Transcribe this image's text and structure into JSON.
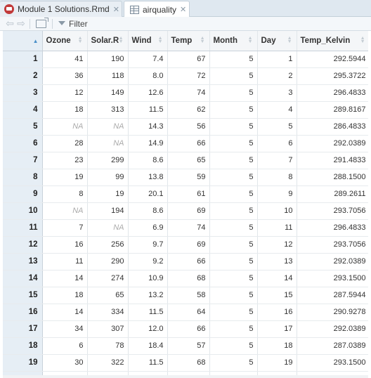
{
  "tabs": [
    {
      "label": "Module 1 Solutions.Rmd",
      "icon": "rmarkdown-file-icon",
      "active": false
    },
    {
      "label": "airquality",
      "icon": "data-grid-icon",
      "active": true
    }
  ],
  "toolbar": {
    "filter_label": "Filter"
  },
  "table": {
    "columns": [
      "Ozone",
      "Solar.R",
      "Wind",
      "Temp",
      "Month",
      "Day",
      "Temp_Kelvin"
    ],
    "rows": [
      [
        "1",
        "41",
        "190",
        "7.4",
        "67",
        "5",
        "1",
        "292.5944"
      ],
      [
        "2",
        "36",
        "118",
        "8.0",
        "72",
        "5",
        "2",
        "295.3722"
      ],
      [
        "3",
        "12",
        "149",
        "12.6",
        "74",
        "5",
        "3",
        "296.4833"
      ],
      [
        "4",
        "18",
        "313",
        "11.5",
        "62",
        "5",
        "4",
        "289.8167"
      ],
      [
        "5",
        "NA",
        "NA",
        "14.3",
        "56",
        "5",
        "5",
        "286.4833"
      ],
      [
        "6",
        "28",
        "NA",
        "14.9",
        "66",
        "5",
        "6",
        "292.0389"
      ],
      [
        "7",
        "23",
        "299",
        "8.6",
        "65",
        "5",
        "7",
        "291.4833"
      ],
      [
        "8",
        "19",
        "99",
        "13.8",
        "59",
        "5",
        "8",
        "288.1500"
      ],
      [
        "9",
        "8",
        "19",
        "20.1",
        "61",
        "5",
        "9",
        "289.2611"
      ],
      [
        "10",
        "NA",
        "194",
        "8.6",
        "69",
        "5",
        "10",
        "293.7056"
      ],
      [
        "11",
        "7",
        "NA",
        "6.9",
        "74",
        "5",
        "11",
        "296.4833"
      ],
      [
        "12",
        "16",
        "256",
        "9.7",
        "69",
        "5",
        "12",
        "293.7056"
      ],
      [
        "13",
        "11",
        "290",
        "9.2",
        "66",
        "5",
        "13",
        "292.0389"
      ],
      [
        "14",
        "14",
        "274",
        "10.9",
        "68",
        "5",
        "14",
        "293.1500"
      ],
      [
        "15",
        "18",
        "65",
        "13.2",
        "58",
        "5",
        "15",
        "287.5944"
      ],
      [
        "16",
        "14",
        "334",
        "11.5",
        "64",
        "5",
        "16",
        "290.9278"
      ],
      [
        "17",
        "34",
        "307",
        "12.0",
        "66",
        "5",
        "17",
        "292.0389"
      ],
      [
        "18",
        "6",
        "78",
        "18.4",
        "57",
        "5",
        "18",
        "287.0389"
      ],
      [
        "19",
        "30",
        "322",
        "11.5",
        "68",
        "5",
        "19",
        "293.1500"
      ]
    ]
  }
}
